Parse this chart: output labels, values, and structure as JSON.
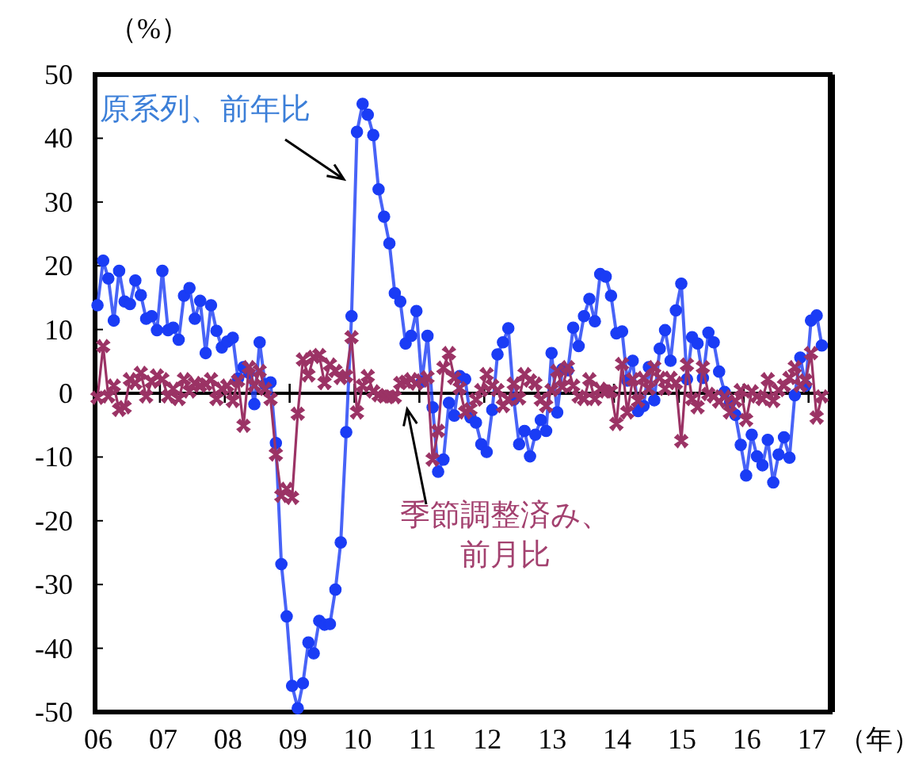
{
  "chart_data": {
    "type": "line",
    "ylabel": "（%）",
    "xlabel": "（年）",
    "xlim": [
      "2006-01-01",
      "2017-05-01"
    ],
    "ylim": [
      -50,
      50
    ],
    "yticks": [
      -50,
      -40,
      -30,
      -20,
      -10,
      0,
      10,
      20,
      30,
      40,
      50
    ],
    "xticks": [
      {
        "value": "2006-01-01",
        "label": "06"
      },
      {
        "value": "2007-01-01",
        "label": "07"
      },
      {
        "value": "2008-01-01",
        "label": "08"
      },
      {
        "value": "2009-01-01",
        "label": "09"
      },
      {
        "value": "2010-01-01",
        "label": "10"
      },
      {
        "value": "2011-01-01",
        "label": "11"
      },
      {
        "value": "2012-01-01",
        "label": "12"
      },
      {
        "value": "2013-01-01",
        "label": "13"
      },
      {
        "value": "2014-01-01",
        "label": "14"
      },
      {
        "value": "2015-01-01",
        "label": "15"
      },
      {
        "value": "2016-01-01",
        "label": "16"
      },
      {
        "value": "2017-01-01",
        "label": "17"
      }
    ],
    "x": [
      "2006-01-15",
      "2006-02-15",
      "2006-03-15",
      "2006-04-15",
      "2006-05-15",
      "2006-06-15",
      "2006-07-15",
      "2006-08-15",
      "2006-09-15",
      "2006-10-15",
      "2006-11-15",
      "2006-12-15",
      "2007-01-15",
      "2007-02-15",
      "2007-03-15",
      "2007-04-15",
      "2007-05-15",
      "2007-06-15",
      "2007-07-15",
      "2007-08-15",
      "2007-09-15",
      "2007-10-15",
      "2007-11-15",
      "2007-12-15",
      "2008-01-15",
      "2008-02-15",
      "2008-03-15",
      "2008-04-15",
      "2008-05-15",
      "2008-06-15",
      "2008-07-15",
      "2008-08-15",
      "2008-09-15",
      "2008-10-15",
      "2008-11-15",
      "2008-12-15",
      "2009-01-15",
      "2009-02-15",
      "2009-03-15",
      "2009-04-15",
      "2009-05-15",
      "2009-06-15",
      "2009-07-15",
      "2009-08-15",
      "2009-09-15",
      "2009-10-15",
      "2009-11-15",
      "2009-12-15",
      "2010-01-15",
      "2010-02-15",
      "2010-03-15",
      "2010-04-15",
      "2010-05-15",
      "2010-06-15",
      "2010-07-15",
      "2010-08-15",
      "2010-09-15",
      "2010-10-15",
      "2010-11-15",
      "2010-12-15",
      "2011-01-15",
      "2011-02-15",
      "2011-03-15",
      "2011-04-15",
      "2011-05-15",
      "2011-06-15",
      "2011-07-15",
      "2011-08-15",
      "2011-09-15",
      "2011-10-15",
      "2011-11-15",
      "2011-12-15",
      "2012-01-15",
      "2012-02-15",
      "2012-03-15",
      "2012-04-15",
      "2012-05-15",
      "2012-06-15",
      "2012-07-15",
      "2012-08-15",
      "2012-09-15",
      "2012-10-15",
      "2012-11-15",
      "2012-12-15",
      "2013-01-15",
      "2013-02-15",
      "2013-03-15",
      "2013-04-15",
      "2013-05-15",
      "2013-06-15",
      "2013-07-15",
      "2013-08-15",
      "2013-09-15",
      "2013-10-15",
      "2013-11-15",
      "2013-12-15",
      "2014-01-15",
      "2014-02-15",
      "2014-03-15",
      "2014-04-15",
      "2014-05-15",
      "2014-06-15",
      "2014-07-15",
      "2014-08-15",
      "2014-09-15",
      "2014-10-15",
      "2014-11-15",
      "2014-12-15",
      "2015-01-15",
      "2015-02-15",
      "2015-03-15",
      "2015-04-15",
      "2015-05-15",
      "2015-06-15",
      "2015-07-15",
      "2015-08-15",
      "2015-09-15",
      "2015-10-15",
      "2015-11-15",
      "2015-12-15",
      "2016-01-15",
      "2016-02-15",
      "2016-03-15",
      "2016-04-15",
      "2016-05-15",
      "2016-06-15",
      "2016-07-15",
      "2016-08-15",
      "2016-09-15",
      "2016-10-15",
      "2016-11-15",
      "2016-12-15",
      "2017-01-15",
      "2017-02-15",
      "2017-03-15"
    ],
    "series": [
      {
        "color": "#1a3cf5",
        "marker": "circle",
        "values": [
          13.8,
          20.8,
          18.0,
          11.4,
          19.2,
          14.4,
          14.0,
          17.7,
          15.4,
          11.7,
          12.1,
          9.9,
          19.2,
          9.9,
          10.3,
          8.4,
          15.3,
          16.5,
          11.7,
          14.5,
          6.3,
          13.8,
          9.8,
          7.2,
          8.1,
          8.7,
          2.3,
          4.1,
          3.2,
          -1.7,
          8.0,
          1.4,
          1.7,
          -7.8,
          -26.8,
          -35.0,
          -45.9,
          -49.4,
          -45.5,
          -39.1,
          -40.8,
          -35.7,
          -36.3,
          -36.2,
          -30.8,
          -23.4,
          -6.1,
          12.1,
          41.0,
          45.4,
          43.7,
          40.5,
          32.0,
          27.7,
          23.5,
          15.7,
          14.4,
          7.8,
          9.0,
          12.9,
          1.8,
          9.0,
          -2.2,
          -12.3,
          -10.4,
          -1.5,
          -3.5,
          2.7,
          2.2,
          -3.8,
          -4.6,
          -8.0,
          -9.2,
          -2.6,
          6.1,
          8.0,
          10.2,
          -1.0,
          -8.0,
          -5.9,
          -9.9,
          -6.5,
          -4.2,
          -5.9,
          6.3,
          -3.0,
          3.8,
          3.6,
          10.3,
          7.4,
          12.1,
          14.8,
          11.3,
          18.7,
          18.3,
          15.3,
          9.4,
          9.7,
          2.0,
          5.1,
          -2.8,
          -2.0,
          4.1,
          -1.1,
          7.0,
          9.9,
          5.1,
          13.0,
          17.2,
          2.2,
          8.8,
          7.8,
          2.4,
          9.5,
          8.0,
          3.4,
          0.2,
          -1.5,
          -3.4,
          -8.1,
          -12.9,
          -6.5,
          -9.9,
          -11.3,
          -7.3,
          -14.0,
          -9.6,
          -6.9,
          -10.1,
          -0.3,
          5.6,
          1.2,
          11.4,
          12.2,
          7.5
        ]
      },
      {
        "color": "#9b3365",
        "marker": "cross",
        "values": [
          -0.7,
          7.4,
          -0.5,
          1.2,
          -2.6,
          -2.2,
          2.2,
          1.6,
          3.2,
          -0.5,
          1.8,
          2.8,
          2.2,
          -0.5,
          0.7,
          -0.9,
          2.2,
          0.3,
          1.6,
          1.2,
          1.4,
          2.2,
          -0.9,
          0.7,
          1.2,
          -1.2,
          2.0,
          -5.1,
          4.1,
          1.2,
          3.5,
          0.7,
          -0.9,
          -9.6,
          -16.1,
          -15.0,
          -16.4,
          -3.2,
          5.3,
          2.8,
          5.7,
          6.0,
          1.6,
          4.5,
          3.5,
          2.4,
          2.7,
          8.8,
          -3.0,
          1.2,
          2.7,
          0.3,
          -0.3,
          -0.5,
          -0.5,
          -0.6,
          1.6,
          1.8,
          2.2,
          1.5,
          2.0,
          2.5,
          -10.4,
          -5.9,
          4.0,
          6.3,
          2.4,
          0.8,
          -3.0,
          -2.5,
          -1.0,
          0.5,
          3.0,
          1.2,
          0.5,
          -2.0,
          -1.0,
          1.5,
          -0.8,
          3.0,
          2.0,
          1.5,
          -1.0,
          -2.0,
          0.5,
          3.5,
          1.0,
          4.1,
          1.2,
          -0.5,
          -0.9,
          2.2,
          -0.9,
          0.7,
          0.3,
          0.3,
          -4.8,
          4.6,
          -3.0,
          2.2,
          -1.2,
          2.4,
          0.7,
          4.1,
          2.4,
          0.7,
          2.4,
          1.6,
          -7.5,
          4.5,
          -0.9,
          -2.2,
          4.1,
          -0.1,
          -0.5,
          -1.3,
          -0.5,
          -3.0,
          -1.2,
          0.5,
          -4.2,
          0.3,
          -0.5,
          -0.9,
          2.2,
          -1.2,
          0.5,
          1.2,
          2.4,
          4.1,
          1.2,
          2.0,
          6.3,
          -3.8,
          -0.5
        ]
      }
    ],
    "annotations": [
      "原系列、前年比",
      "季節調整済み、前月比"
    ]
  }
}
